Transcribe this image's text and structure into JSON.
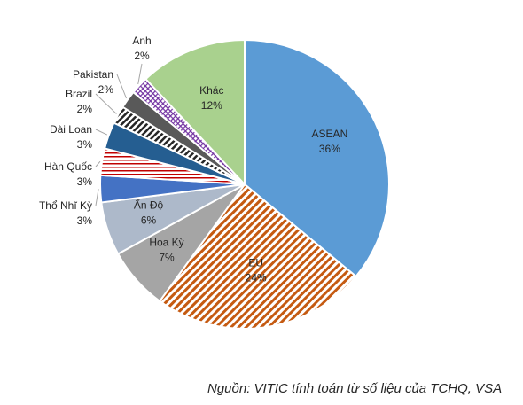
{
  "chart_data": {
    "type": "pie",
    "title": "",
    "categories": [
      "ASEAN",
      "EU",
      "Hoa Kỳ",
      "Ấn Độ",
      "Thổ Nhĩ Kỳ",
      "Hàn Quốc",
      "Đài Loan",
      "Brazil",
      "Pakistan",
      "Anh",
      "Khác"
    ],
    "values": [
      36,
      24,
      7,
      6,
      3,
      3,
      3,
      2,
      2,
      2,
      12
    ],
    "value_labels": [
      "36%",
      "24%",
      "7%",
      "6%",
      "3%",
      "3%",
      "3%",
      "2%",
      "2%",
      "2%",
      "12%"
    ],
    "start": "top, clockwise",
    "legend": "none (labels on slices)",
    "colors": [
      "#5b9bd5",
      "#c55a11",
      "#a5a5a5",
      "#adb9ca",
      "#4472c4",
      "#c00000",
      "#255e91",
      "#262626",
      "#595959",
      "#7030a0",
      "#a9d18e"
    ],
    "patterns": [
      "solid",
      "diagonal-stripes",
      "solid",
      "solid",
      "solid",
      "horizontal-stripes",
      "solid",
      "diagonal-stripes",
      "solid",
      "crosshatch",
      "solid"
    ]
  },
  "source_note": "Nguồn: VITIC tính toán từ số liệu của TCHQ, VSA"
}
